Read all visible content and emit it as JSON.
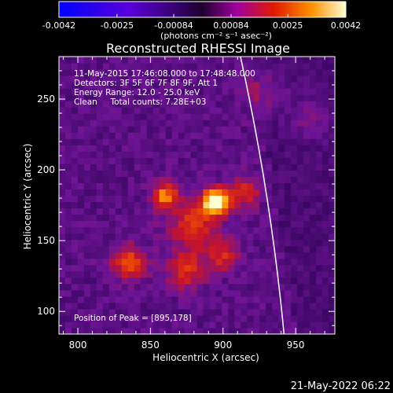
{
  "colorbar": {
    "tick_labels": [
      "-0.0042",
      "-0.0025",
      "-0.00084",
      "0.00084",
      "0.0025",
      "0.0042"
    ],
    "tick_values": [
      -0.0042,
      -0.0025,
      -0.00084,
      0.00084,
      0.0025,
      0.0042
    ],
    "range": [
      -0.0042,
      0.0042
    ],
    "unit_label": "(photons cm⁻² s⁻¹ asec⁻²)"
  },
  "chart_data": {
    "type": "heatmap",
    "title": "Reconstructed RHESSI Image",
    "xlabel": "Heliocentric X (arcsec)",
    "ylabel": "Heliocentric Y (arcsec)",
    "xlim": [
      787,
      977
    ],
    "ylim": [
      84,
      280
    ],
    "x_ticks": [
      800,
      850,
      900,
      950
    ],
    "y_ticks": [
      100,
      150,
      200,
      250
    ],
    "x_tick_labels": [
      "800",
      "850",
      "900",
      "950"
    ],
    "y_tick_labels": [
      "100",
      "150",
      "200",
      "250"
    ],
    "annotations": [
      "11-May-2015 17:46:08.000 to 17:48:48.000",
      "Detectors: 3F 5F 6F 7F 8F 9F, Att 1",
      "Energy Range: 12.0 - 25.0 keV",
      "Clean     Total counts: 7.28E+03"
    ],
    "peak_label": "Position of Peak = [895,178]",
    "peak": [
      895,
      178
    ],
    "sources": [
      {
        "x": 895,
        "y": 178,
        "intensity": 1.0,
        "sigma": 6
      },
      {
        "x": 860,
        "y": 182,
        "intensity": 0.55,
        "sigma": 6
      },
      {
        "x": 880,
        "y": 162,
        "intensity": 0.35,
        "sigma": 12
      },
      {
        "x": 835,
        "y": 135,
        "intensity": 0.45,
        "sigma": 8
      },
      {
        "x": 875,
        "y": 130,
        "intensity": 0.35,
        "sigma": 9
      },
      {
        "x": 900,
        "y": 140,
        "intensity": 0.3,
        "sigma": 8
      },
      {
        "x": 915,
        "y": 185,
        "intensity": 0.3,
        "sigma": 8
      },
      {
        "x": 930,
        "y": 255,
        "intensity": 0.22,
        "sigma": 10
      },
      {
        "x": 960,
        "y": 235,
        "intensity": 0.18,
        "sigma": 10
      }
    ],
    "limb": {
      "x_top": 912,
      "x_bottom": 942
    }
  },
  "footer": {
    "timestamp": "21-May-2022 06:22"
  }
}
